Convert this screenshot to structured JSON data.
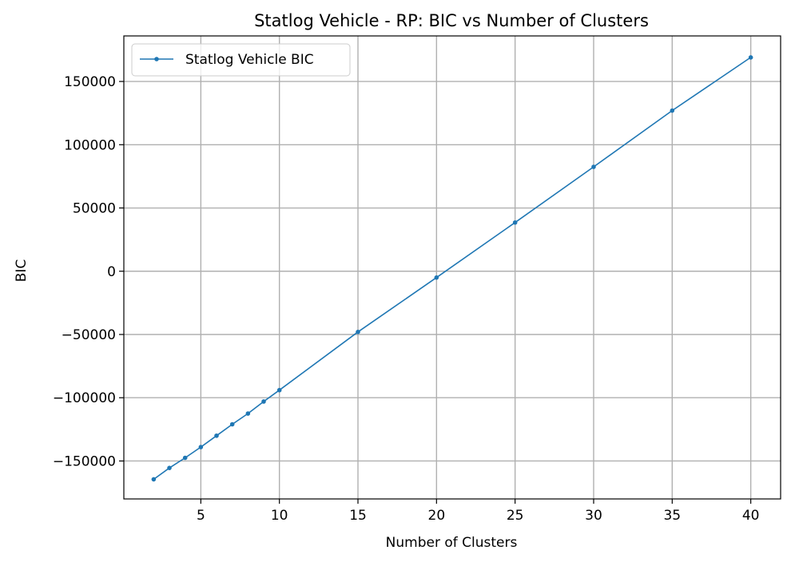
{
  "chart_data": {
    "type": "line",
    "title": "Statlog Vehicle - RP: BIC vs Number of Clusters",
    "xlabel": "Number of Clusters",
    "ylabel": "BIC",
    "xlim": [
      0.1,
      41.9
    ],
    "ylim": [
      -180000,
      186000
    ],
    "xticks": [
      5,
      10,
      15,
      20,
      25,
      30,
      35,
      40
    ],
    "xtick_labels": [
      "5",
      "10",
      "15",
      "20",
      "25",
      "30",
      "35",
      "40"
    ],
    "yticks": [
      -150000,
      -100000,
      -50000,
      0,
      50000,
      100000,
      150000
    ],
    "ytick_labels": [
      "−150000",
      "−100000",
      "−50000",
      "0",
      "50000",
      "100000",
      "150000"
    ],
    "grid": true,
    "legend_position": "upper-left",
    "series": [
      {
        "name": "Statlog Vehicle BIC",
        "color": "#1f77b4",
        "marker": "circle",
        "x": [
          2,
          3,
          4,
          5,
          6,
          7,
          8,
          9,
          10,
          15,
          20,
          25,
          30,
          35,
          40
        ],
        "y": [
          -164500,
          -155500,
          -147500,
          -139000,
          -130000,
          -121000,
          -112500,
          -103000,
          -94000,
          -48000,
          -5000,
          38500,
          82500,
          127000,
          169000
        ]
      }
    ]
  }
}
